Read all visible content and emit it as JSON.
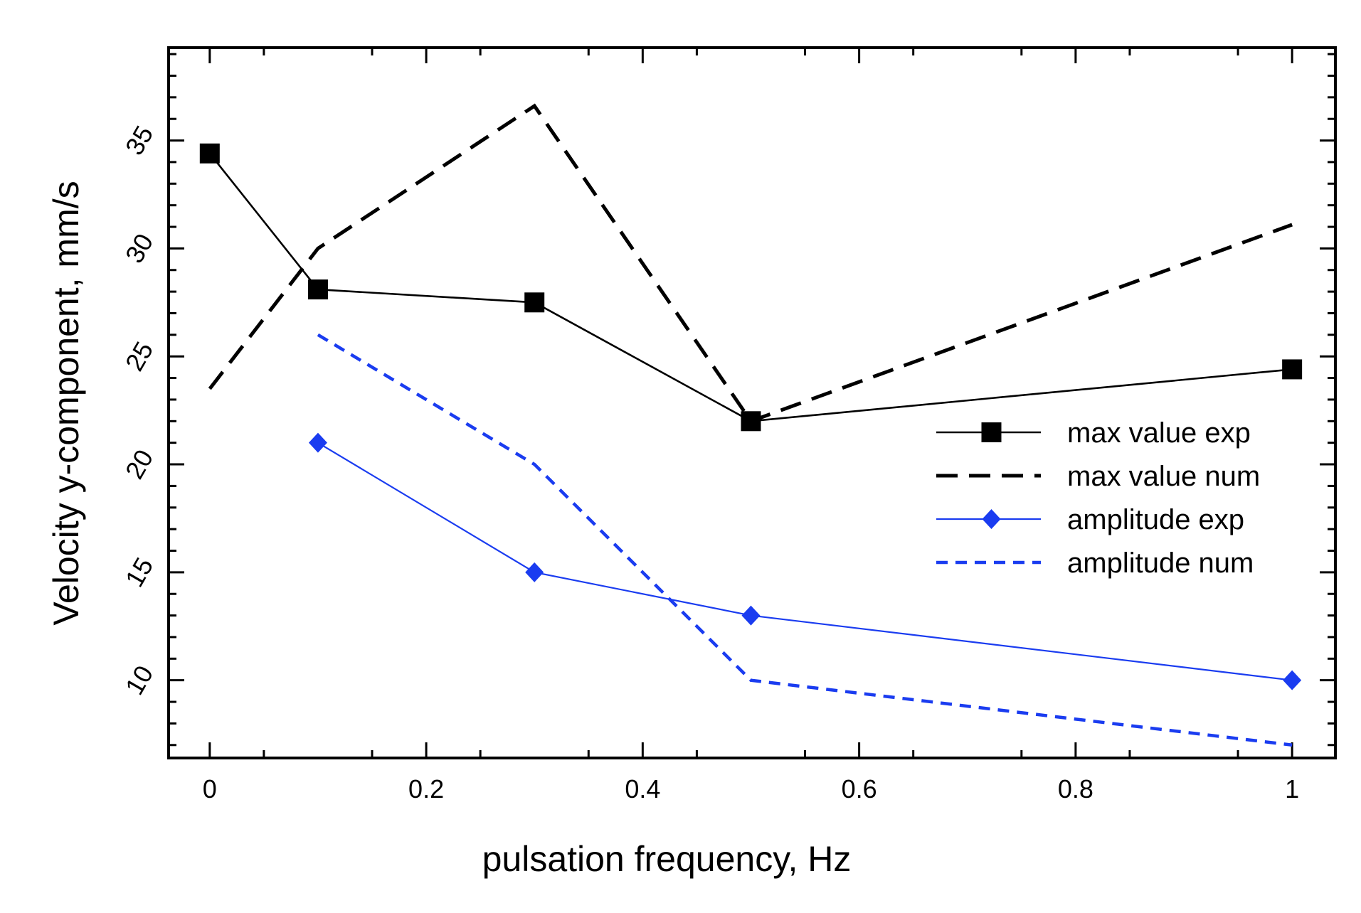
{
  "chart_data": {
    "type": "line",
    "title": "",
    "xlabel": "pulsation frequency, Hz",
    "ylabel": "Velocity y-component, mm/s",
    "xlim": [
      -0.038,
      1.04
    ],
    "ylim": [
      6.4,
      39.3
    ],
    "x_ticks": [
      0,
      0.2,
      0.4,
      0.6,
      0.8,
      1
    ],
    "x_tick_labels": [
      "0",
      "0.2",
      "0.4",
      "0.6",
      "0.8",
      "1"
    ],
    "y_ticks": [
      10,
      15,
      20,
      25,
      30,
      35
    ],
    "y_tick_labels": [
      "10",
      "15",
      "20",
      "25",
      "30",
      "35"
    ],
    "grid": false,
    "legend_position": "right",
    "series": [
      {
        "name": "max value exp",
        "color": "#000000",
        "style": "solid",
        "marker": "square",
        "x": [
          0,
          0.1,
          0.3,
          0.5,
          1
        ],
        "y": [
          34.4,
          28.1,
          27.5,
          22.0,
          24.4
        ]
      },
      {
        "name": "max value num",
        "color": "#000000",
        "style": "dashed",
        "marker": "none",
        "x": [
          0,
          0.1,
          0.3,
          0.5,
          1
        ],
        "y": [
          23.5,
          30.0,
          36.6,
          22.0,
          31.1
        ]
      },
      {
        "name": "amplitude exp",
        "color": "#1a3cf0",
        "style": "solid",
        "marker": "diamond",
        "x": [
          0.1,
          0.3,
          0.5,
          1
        ],
        "y": [
          21.0,
          15.0,
          13.0,
          10.0
        ]
      },
      {
        "name": "amplitude num",
        "color": "#1a3cf0",
        "style": "dashed",
        "marker": "none",
        "x": [
          0.1,
          0.3,
          0.5,
          1
        ],
        "y": [
          26.0,
          20.0,
          10.0,
          7.0
        ]
      }
    ]
  }
}
